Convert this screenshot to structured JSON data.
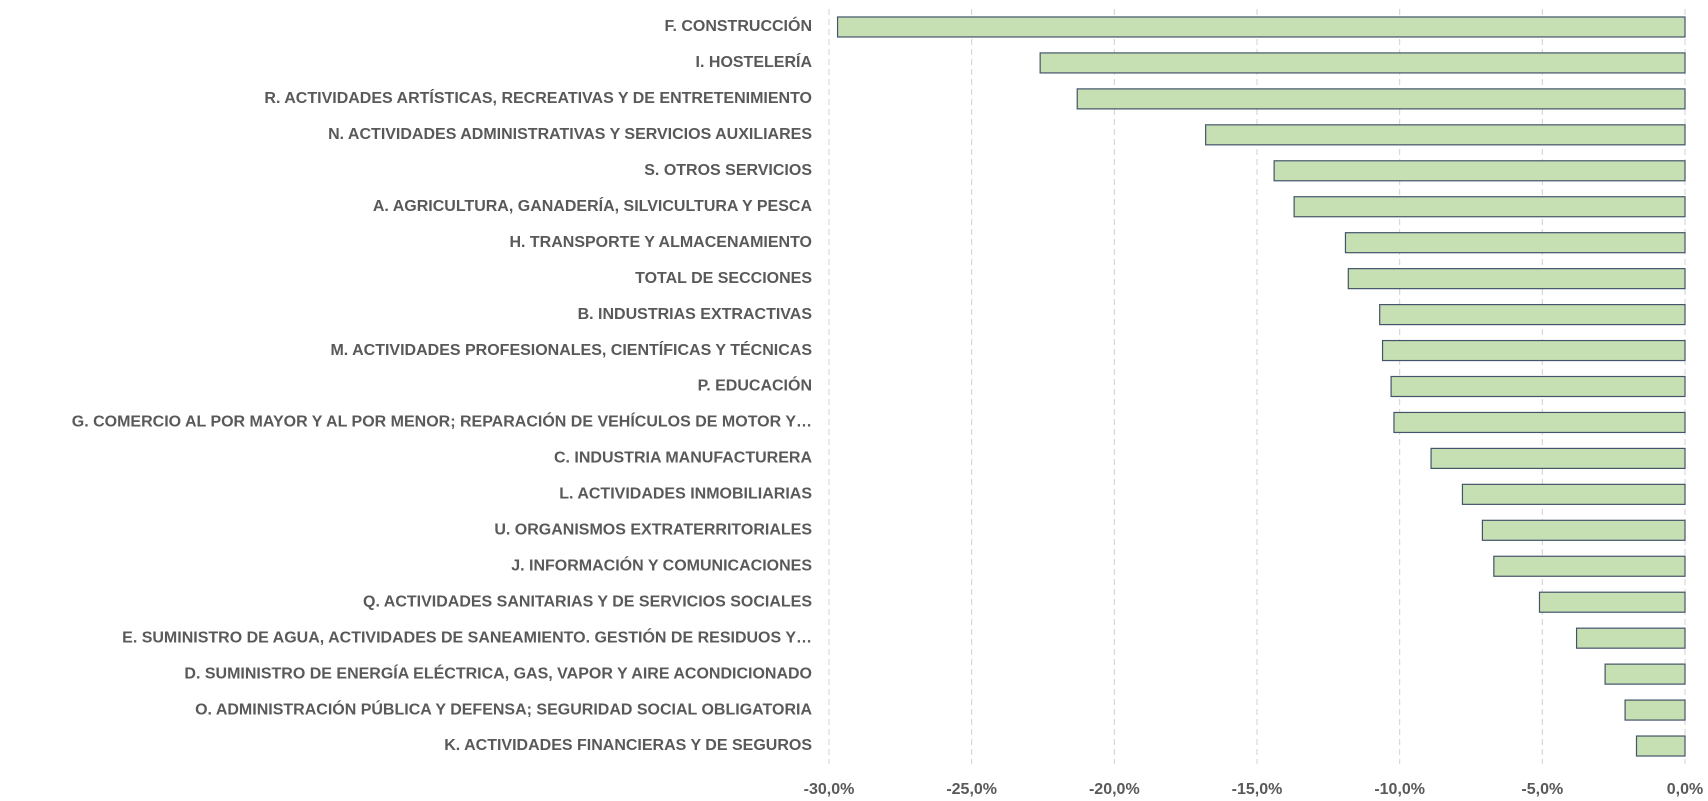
{
  "chart_data": {
    "type": "hbar",
    "categories": [
      "F. CONSTRUCCIÓN",
      "I. HOSTELERÍA",
      "R. ACTIVIDADES ARTÍSTICAS, RECREATIVAS Y DE ENTRETENIMIENTO",
      "N. ACTIVIDADES ADMINISTRATIVAS Y SERVICIOS AUXILIARES",
      "S. OTROS SERVICIOS",
      "A. AGRICULTURA, GANADERÍA, SILVICULTURA Y PESCA",
      "H. TRANSPORTE Y ALMACENAMIENTO",
      "TOTAL DE SECCIONES",
      "B. INDUSTRIAS EXTRACTIVAS",
      "M. ACTIVIDADES PROFESIONALES, CIENTÍFICAS Y TÉCNICAS",
      "P. EDUCACIÓN",
      "G. COMERCIO AL POR MAYOR Y AL POR MENOR; REPARACIÓN DE VEHÍCULOS DE MOTOR Y…",
      "C. INDUSTRIA MANUFACTURERA",
      "L. ACTIVIDADES INMOBILIARIAS",
      "U. ORGANISMOS EXTRATERRITORIALES",
      "J. INFORMACIÓN Y COMUNICACIONES",
      "Q. ACTIVIDADES SANITARIAS Y DE SERVICIOS SOCIALES",
      "E. SUMINISTRO DE AGUA, ACTIVIDADES DE SANEAMIENTO. GESTIÓN DE RESIDUOS Y…",
      "D. SUMINISTRO DE ENERGÍA ELÉCTRICA, GAS, VAPOR Y AIRE ACONDICIONADO",
      "O. ADMINISTRACIÓN PÚBLICA Y DEFENSA; SEGURIDAD SOCIAL OBLIGATORIA",
      "K. ACTIVIDADES FINANCIERAS Y DE SEGUROS"
    ],
    "values": [
      -29.7,
      -22.6,
      -21.3,
      -16.8,
      -14.4,
      -13.7,
      -11.9,
      -11.8,
      -10.7,
      -10.6,
      -10.3,
      -10.2,
      -8.9,
      -7.8,
      -7.1,
      -6.7,
      -5.1,
      -3.8,
      -2.8,
      -2.1,
      -1.7
    ],
    "color": "#c6e0b4",
    "edge_color": "#44546a",
    "xlim": [
      -30,
      0
    ],
    "xticks": [
      {
        "value": -30,
        "label": "-30,0%"
      },
      {
        "value": -25,
        "label": "-25,0%"
      },
      {
        "value": -20,
        "label": "-20,0%"
      },
      {
        "value": -15,
        "label": "-15,0%"
      },
      {
        "value": -10,
        "label": "-10,0%"
      },
      {
        "value": -5,
        "label": "-5,0%"
      },
      {
        "value": 0,
        "label": "0,0%"
      }
    ],
    "grid": true
  }
}
